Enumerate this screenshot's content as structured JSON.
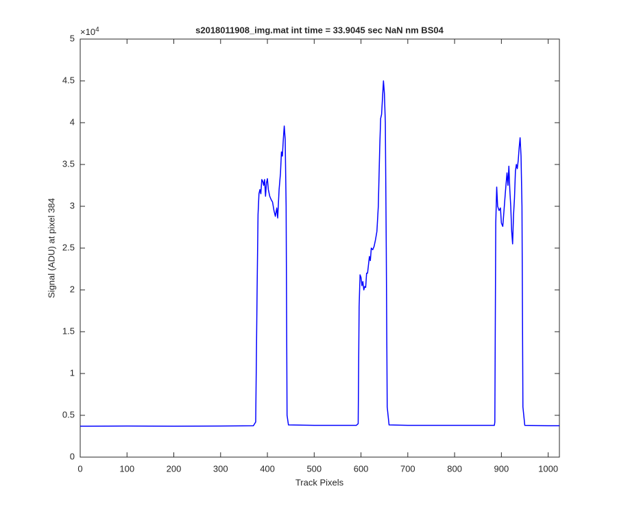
{
  "chart_data": {
    "type": "line",
    "title": "s2018011908_img.mat int time = 33.9045 sec  NaN nm BS04",
    "x_label": "Track Pixels",
    "y_label": "Signal (ADU) at pixel 384",
    "y_multiplier": "×10",
    "y_exponent": "4",
    "color": "#0000ff",
    "x": [
      0,
      100,
      200,
      300,
      370,
      375,
      378,
      380,
      382,
      384,
      386,
      388,
      390,
      392,
      394,
      396,
      398,
      400,
      402,
      405,
      408,
      411,
      414,
      417,
      420,
      422,
      425,
      428,
      430,
      432,
      434,
      436,
      438,
      440,
      442,
      445,
      500,
      590,
      594,
      596,
      598,
      600,
      602,
      604,
      606,
      608,
      610,
      612,
      614,
      616,
      618,
      620,
      622,
      625,
      628,
      631,
      634,
      637,
      640,
      642,
      644,
      646,
      648,
      650,
      652,
      654,
      656,
      660,
      700,
      885,
      886,
      888,
      890,
      892,
      895,
      898,
      900,
      903,
      906,
      909,
      912,
      914,
      916,
      918,
      920,
      922,
      924,
      926,
      928,
      930,
      932,
      934,
      936,
      938,
      940,
      942,
      944,
      946,
      950,
      1000,
      1024
    ],
    "values": [
      3700,
      3720,
      3700,
      3720,
      3750,
      4200,
      20000,
      29000,
      31500,
      32000,
      31500,
      33200,
      33000,
      32500,
      33200,
      31200,
      32800,
      33300,
      32000,
      31200,
      30800,
      30500,
      29500,
      28800,
      29800,
      28600,
      32000,
      34000,
      36500,
      36000,
      38000,
      39600,
      38000,
      30000,
      5000,
      3850,
      3800,
      3800,
      4000,
      18000,
      21800,
      21500,
      20500,
      21000,
      20000,
      20400,
      20300,
      22000,
      22000,
      23000,
      24000,
      23500,
      25000,
      24800,
      25200,
      26000,
      27000,
      30000,
      37000,
      40500,
      41000,
      43000,
      45000,
      43500,
      40000,
      25000,
      6000,
      3850,
      3800,
      3800,
      4200,
      28000,
      32300,
      30000,
      29500,
      29800,
      28000,
      27600,
      29800,
      32000,
      34000,
      32500,
      34800,
      32000,
      30000,
      27000,
      25500,
      29000,
      31000,
      34200,
      35000,
      34500,
      35500,
      37000,
      38200,
      36000,
      30000,
      6000,
      3800,
      3750,
      3750
    ],
    "xlim": [
      0,
      1024
    ],
    "ylim": [
      0,
      50000
    ],
    "xticks": [
      0,
      100,
      200,
      300,
      400,
      500,
      600,
      700,
      800,
      900,
      1000
    ],
    "yticks": [
      {
        "value": 0,
        "label": "0"
      },
      {
        "value": 5000,
        "label": "0.5"
      },
      {
        "value": 10000,
        "label": "1"
      },
      {
        "value": 15000,
        "label": "1.5"
      },
      {
        "value": 20000,
        "label": "2"
      },
      {
        "value": 25000,
        "label": "2.5"
      },
      {
        "value": 30000,
        "label": "3"
      },
      {
        "value": 35000,
        "label": "3.5"
      },
      {
        "value": 40000,
        "label": "4"
      },
      {
        "value": 45000,
        "label": "4.5"
      },
      {
        "value": 50000,
        "label": "5"
      }
    ]
  }
}
